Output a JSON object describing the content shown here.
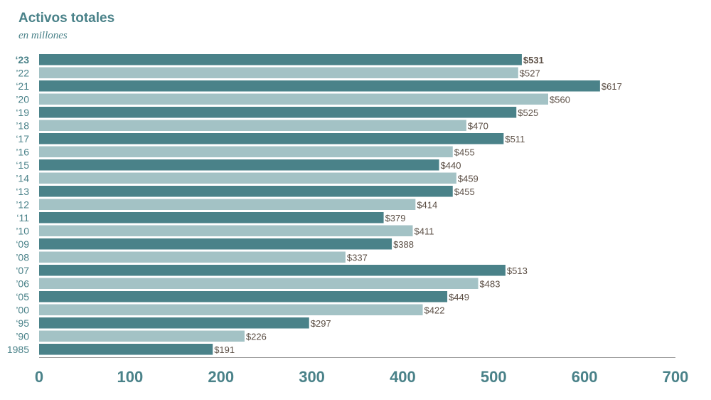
{
  "colors": {
    "dark": "#4a8289",
    "light": "#a3c2c5",
    "value_text": "#5b4e44",
    "axis": "#8a8a8a"
  },
  "chart_data": {
    "type": "bar",
    "orientation": "horizontal",
    "title": "Activos totales",
    "subtitle": "en millones",
    "categories": [
      "‘23",
      "’22",
      "‘21",
      "’20",
      "‘19",
      "’18",
      "‘17",
      "’16",
      "‘15",
      "’14",
      "‘13",
      "’12",
      "‘11",
      "’10",
      "‘09",
      "’08",
      "‘07",
      "’06",
      "‘05",
      "’00",
      "‘95",
      "’90",
      "1985"
    ],
    "values": [
      531,
      527,
      617,
      560,
      525,
      470,
      511,
      455,
      440,
      459,
      455,
      414,
      379,
      411,
      388,
      337,
      513,
      483,
      449,
      422,
      297,
      226,
      191
    ],
    "value_labels": [
      "$531",
      "$527",
      "$617",
      "$560",
      "$525",
      "$470",
      "$511",
      "$455",
      "$440",
      "$459",
      "$455",
      "$414",
      "$379",
      "$411",
      "$388",
      "$337",
      "$513",
      "$483",
      "$449",
      "$422",
      "$297",
      "$226",
      "$191"
    ],
    "xlim": [
      0,
      700
    ],
    "xticks": [
      "0",
      "100",
      "200",
      "300",
      "400",
      "500",
      "600",
      "700"
    ],
    "xlabel": "",
    "ylabel": "",
    "grid": false,
    "bar_colors_alternate": [
      "dark",
      "light"
    ],
    "highlight_first_label": true
  }
}
